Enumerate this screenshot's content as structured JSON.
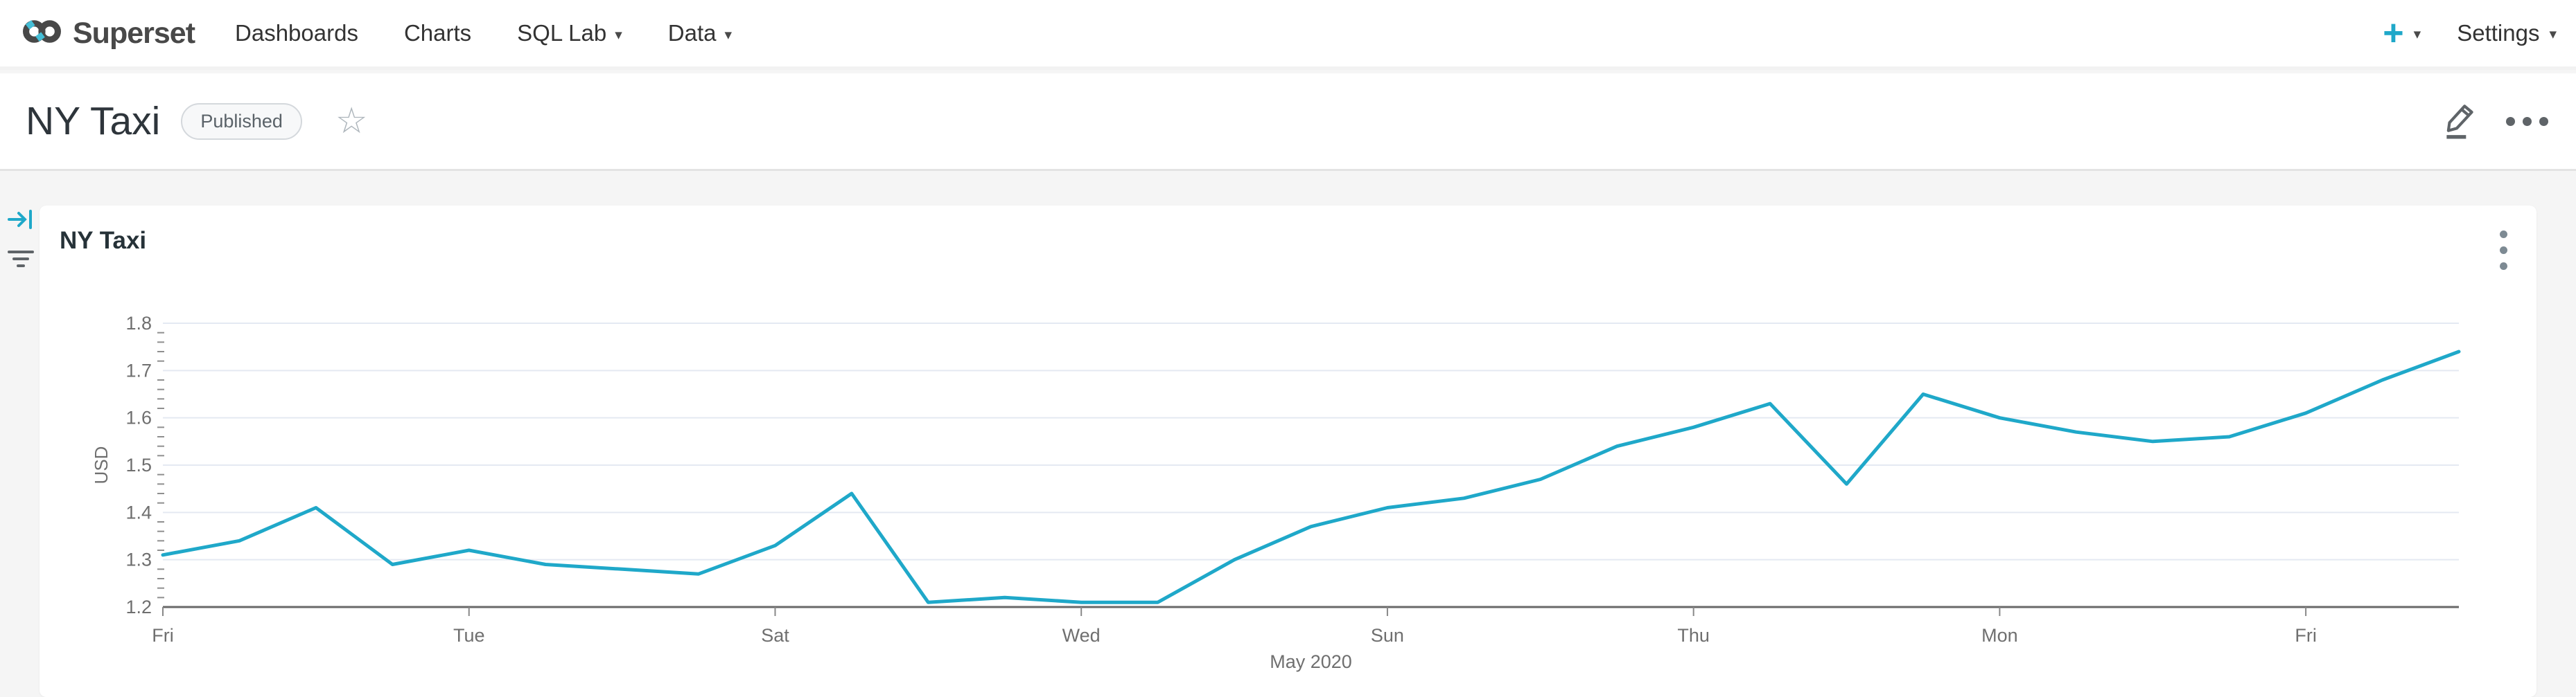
{
  "icons": {
    "caret": "▾",
    "star": "☆"
  },
  "colors": {
    "accent": "#1FA8C9",
    "logo_dark": "#484848",
    "logo_blue": "#45BED6",
    "grid": "#e4e9f2",
    "axis": "#686868",
    "tick_text": "#6f6f6f"
  },
  "navbar": {
    "brand": "Superset",
    "items": [
      {
        "label": "Dashboards",
        "has_caret": false
      },
      {
        "label": "Charts",
        "has_caret": false
      },
      {
        "label": "SQL Lab",
        "has_caret": true
      },
      {
        "label": "Data",
        "has_caret": true
      }
    ],
    "plus_label": "+",
    "settings_label": "Settings"
  },
  "header": {
    "title": "NY Taxi",
    "badge": "Published"
  },
  "card": {
    "title": "NY Taxi"
  },
  "chart_data": {
    "type": "line",
    "title": "NY Taxi",
    "ylabel": "USD",
    "x_period_label": "May 2020",
    "ylim": [
      1.2,
      1.8
    ],
    "y_ticks": [
      1.2,
      1.3,
      1.4,
      1.5,
      1.6,
      1.7,
      1.8
    ],
    "y_minor_tick_step": 0.02,
    "x_tick_labels": [
      "Fri",
      "Tue",
      "Sat",
      "Wed",
      "Sun",
      "Thu",
      "Mon",
      "Fri"
    ],
    "x_tick_indices": [
      0,
      4,
      8,
      12,
      16,
      20,
      24,
      28
    ],
    "values": [
      1.31,
      1.34,
      1.41,
      1.29,
      1.32,
      1.29,
      1.28,
      1.27,
      1.33,
      1.44,
      1.21,
      1.22,
      1.21,
      1.21,
      1.3,
      1.37,
      1.41,
      1.43,
      1.47,
      1.54,
      1.58,
      1.63,
      1.46,
      1.65,
      1.6,
      1.57,
      1.55,
      1.56,
      1.61,
      1.68,
      1.74
    ],
    "line_color": "#1FA8C9",
    "grid": true,
    "legend": false
  }
}
